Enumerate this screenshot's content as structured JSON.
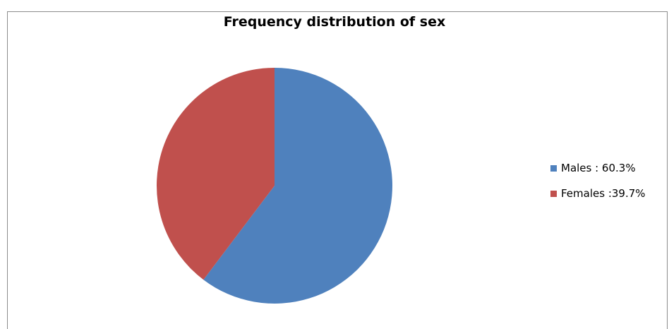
{
  "chart_data": {
    "type": "pie",
    "title": "Frequency distribution of sex",
    "legend_position": "right",
    "slices": [
      {
        "label": "Males : 60.3%",
        "value": 60.3,
        "color": "#4f81bd"
      },
      {
        "label": "Females :39.7%",
        "value": 39.7,
        "color": "#c0504d"
      }
    ]
  }
}
